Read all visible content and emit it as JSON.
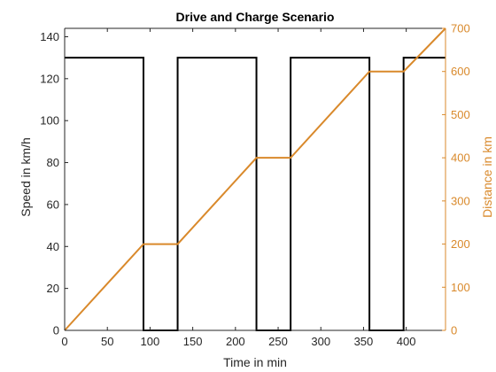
{
  "chart_data": {
    "type": "line",
    "title": "Drive and Charge Scenario",
    "xlabel": "Time in min",
    "ylabel_left": "Speed in km/h",
    "ylabel_right": "Distance in km",
    "xlim": [
      0,
      446
    ],
    "ylim_left": [
      0,
      144
    ],
    "ylim_right": [
      0,
      700
    ],
    "x_ticks": [
      0,
      50,
      100,
      150,
      200,
      250,
      300,
      350,
      400
    ],
    "y_left_ticks": [
      0,
      20,
      40,
      60,
      80,
      100,
      120,
      140
    ],
    "y_right_ticks": [
      0,
      100,
      200,
      300,
      400,
      500,
      600,
      700
    ],
    "grid": false,
    "series": [
      {
        "axis": "left",
        "color": "#000000",
        "x": [
          0,
          92.3,
          92.3,
          132.3,
          132.3,
          224.6,
          224.6,
          264.6,
          264.6,
          356.9,
          356.9,
          396.9,
          396.9,
          446
        ],
        "y": [
          130,
          130,
          0,
          0,
          130,
          130,
          0,
          0,
          130,
          130,
          0,
          0,
          130,
          130
        ]
      },
      {
        "axis": "right",
        "color": "#D9892B",
        "x": [
          0,
          92.3,
          132.3,
          224.6,
          264.6,
          356.9,
          396.9,
          446
        ],
        "y": [
          0,
          200,
          200,
          400,
          400,
          600,
          600,
          700
        ]
      }
    ]
  }
}
